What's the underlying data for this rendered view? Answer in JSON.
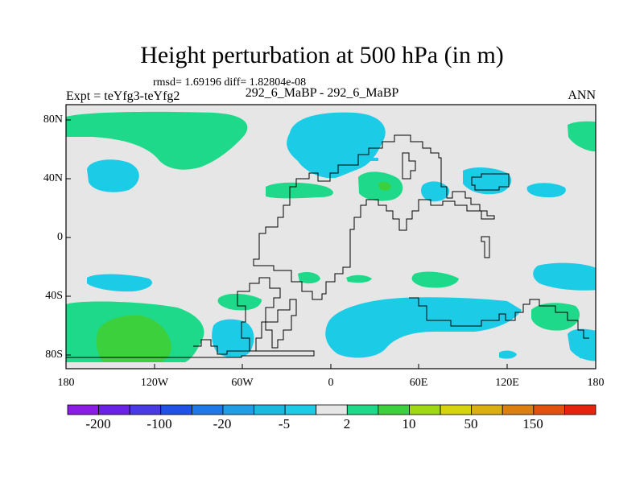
{
  "header": {
    "title": "Height perturbation at 500 hPa (in m)",
    "stats": "rmsd= 1.69196 diff= 1.82804e-08",
    "expt": "Expt = teYfg3-teYfg2",
    "case": "292_6_MaBP - 292_6_MaBP",
    "season": "ANN"
  },
  "axes": {
    "lon_ticks": [
      "180",
      "120W",
      "60W",
      "0",
      "60E",
      "120E",
      "180"
    ],
    "lat_ticks": [
      "80N",
      "40N",
      "0",
      "40S",
      "80S"
    ]
  },
  "colorbar": {
    "labels": [
      "-200",
      "-100",
      "-20",
      "-5",
      "2",
      "10",
      "50",
      "150"
    ],
    "colors": [
      "#8a1ce6",
      "#6a22e6",
      "#4a3ae6",
      "#2251e8",
      "#1e78e8",
      "#1f9ee6",
      "#19b9e0",
      "#1ccbe6",
      "#e6e6e6",
      "#1fd98a",
      "#3cd13c",
      "#a0d814",
      "#d6d40f",
      "#d9b00f",
      "#dd7f0e",
      "#e2510e",
      "#e6240d"
    ]
  },
  "map_colors": {
    "background": "#e6e6e6",
    "cyan": "#1ccbe6",
    "green": "#1fd98a",
    "darkgreen": "#3cd13c",
    "coast": "#000000"
  }
}
